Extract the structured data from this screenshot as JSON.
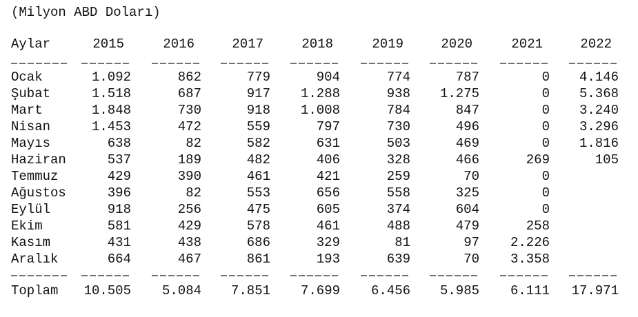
{
  "note": "(Milyon ABD Doları)",
  "table": {
    "header": [
      "Aylar",
      "2015",
      "2016",
      "2017",
      "2018",
      "2019",
      "2020",
      "2021",
      "2022"
    ],
    "rows": [
      [
        "Ocak",
        "1.092",
        "862",
        "779",
        "904",
        "774",
        "787",
        "0",
        "4.146"
      ],
      [
        "Şubat",
        "1.518",
        "687",
        "917",
        "1.288",
        "938",
        "1.275",
        "0",
        "5.368"
      ],
      [
        "Mart",
        "1.848",
        "730",
        "918",
        "1.008",
        "784",
        "847",
        "0",
        "3.240"
      ],
      [
        "Nisan",
        "1.453",
        "472",
        "559",
        "797",
        "730",
        "496",
        "0",
        "3.296"
      ],
      [
        "Mayıs",
        "638",
        "82",
        "582",
        "631",
        "503",
        "469",
        "0",
        "1.816"
      ],
      [
        "Haziran",
        "537",
        "189",
        "482",
        "406",
        "328",
        "466",
        "269",
        "105"
      ],
      [
        "Temmuz",
        "429",
        "390",
        "461",
        "421",
        "259",
        "70",
        "0",
        null
      ],
      [
        "Ağustos",
        "396",
        "82",
        "553",
        "656",
        "558",
        "325",
        "0",
        null
      ],
      [
        "Eylül",
        "918",
        "256",
        "475",
        "605",
        "374",
        "604",
        "0",
        null
      ],
      [
        "Ekim",
        "581",
        "429",
        "578",
        "461",
        "488",
        "479",
        "258",
        null
      ],
      [
        "Kasım",
        "431",
        "438",
        "686",
        "329",
        "81",
        "97",
        "2.226",
        null
      ],
      [
        "Aralık",
        "664",
        "467",
        "861",
        "193",
        "639",
        "70",
        "3.358",
        null
      ]
    ],
    "total": [
      "Toplam",
      "10.505",
      "5.084",
      "7.851",
      "7.699",
      "6.456",
      "5.985",
      "6.111",
      "17.971"
    ]
  }
}
